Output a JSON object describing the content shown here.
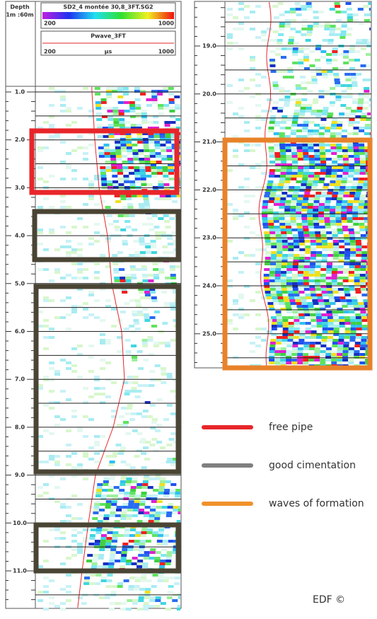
{
  "header": {
    "depth": "Depth",
    "scale": "1m :60m",
    "vdl_name": "SD2_4 montée 30,8_3FT.SG2",
    "vdl_min": "200",
    "vdl_max": "1000",
    "curve_name": "Pwave_3FT",
    "curve_min": "200",
    "curve_unit": "µs",
    "curve_max": "1000"
  },
  "left_depths": [
    "1.0",
    "2.0",
    "3.0",
    "4.0",
    "5.0",
    "6.0",
    "7.0",
    "8.0",
    "9.0",
    "10.0",
    "11.0"
  ],
  "right_depths": [
    "19.0",
    "20.0",
    "21.0",
    "22.0",
    "23.0",
    "24.0",
    "25.0"
  ],
  "legend": [
    {
      "label": "free pipe",
      "color": "#e8262a"
    },
    {
      "label": "good cimentation",
      "color": "#7f7f7f"
    },
    {
      "label": "waves of formation",
      "color": "#f0922b"
    }
  ],
  "credit": "EDF ©"
}
